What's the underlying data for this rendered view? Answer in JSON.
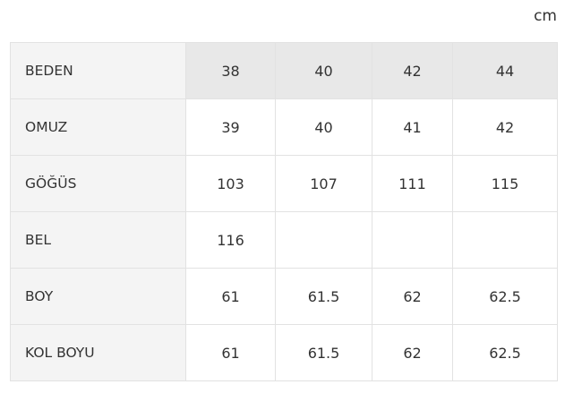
{
  "unit": "cm",
  "table": {
    "header": {
      "label": "BEDEN",
      "values": [
        "38",
        "40",
        "42",
        "44"
      ]
    },
    "rows": [
      {
        "label": "OMUZ",
        "values": [
          "39",
          "40",
          "41",
          "42"
        ]
      },
      {
        "label": "GÖĞÜS",
        "values": [
          "103",
          "107",
          "111",
          "115"
        ]
      },
      {
        "label": "BEL",
        "values": [
          "116",
          "",
          "",
          ""
        ]
      },
      {
        "label": "BOY",
        "values": [
          "61",
          "61.5",
          "62",
          "62.5"
        ]
      },
      {
        "label": "KOL BOYU",
        "values": [
          "61",
          "61.5",
          "62",
          "62.5"
        ]
      }
    ]
  }
}
